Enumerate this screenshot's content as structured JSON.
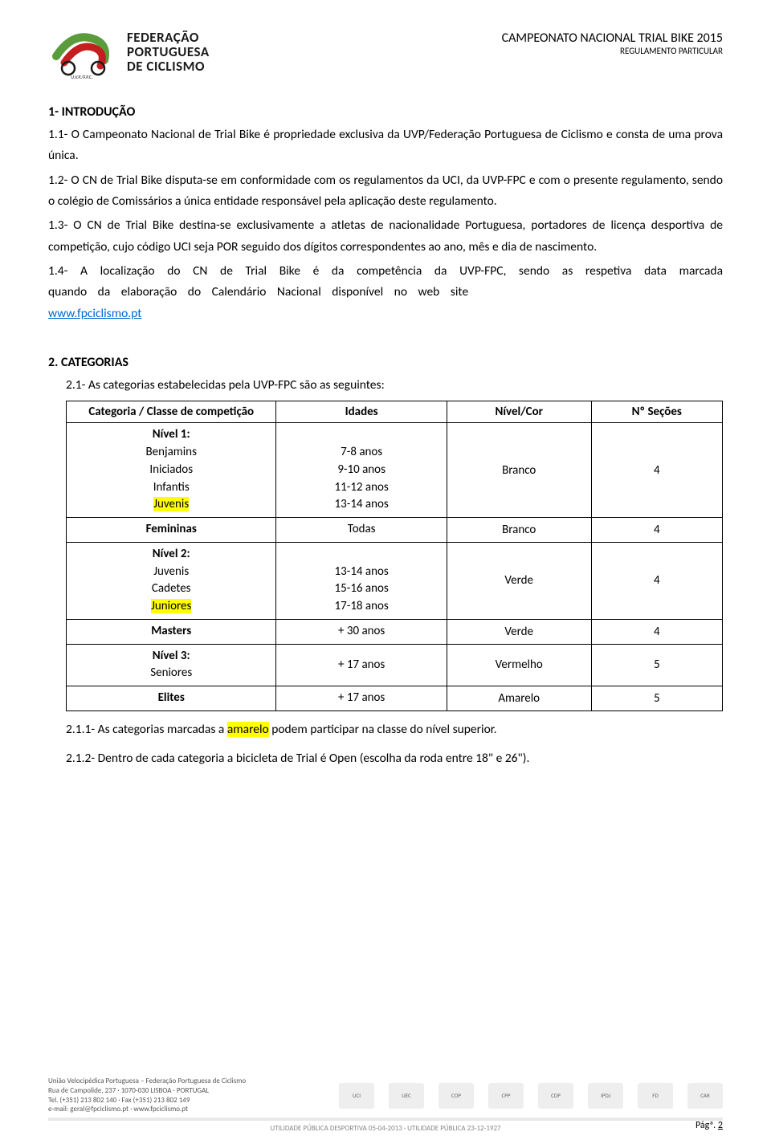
{
  "header": {
    "org_line1": "FEDERAÇÃO",
    "org_line2": "PORTUGUESA",
    "org_line3": "DE CICLISMO",
    "logo_sub": "U.V.P./F.P.C.",
    "title": "CAMPEONATO NACIONAL TRIAL BIKE 2015",
    "subtitle": "REGULAMENTO PARTICULAR",
    "logo_colors": {
      "green": "#5a9b3c",
      "red": "#c41e1e",
      "dark": "#1a1a1a"
    }
  },
  "section1": {
    "title": "1- INTRODUÇÃO",
    "p1": "1.1- O Campeonato Nacional de Trial Bike é propriedade exclusiva da UVP/Federação Portuguesa de Ciclismo e consta de uma prova única.",
    "p2": "1.2- O CN de Trial Bike disputa-se em conformidade com os regulamentos da UCI, da UVP-FPC e com o presente regulamento, sendo o colégio de Comissários a única entidade responsável pela aplicação deste regulamento.",
    "p3": "1.3- O CN de Trial Bike destina-se exclusivamente a atletas de nacionalidade Portuguesa, portadores de licença desportiva de competição, cujo código UCI seja POR seguido dos dígitos correspondentes ao ano, mês e dia de nascimento.",
    "p4a": "1.4- A localização do CN de Trial Bike é da competência da UVP-FPC, sendo as respetiva data marcada quando da elaboração do Calendário Nacional disponível no web site ",
    "link": "www.fpciclismo.pt"
  },
  "section2": {
    "title": "2. CATEGORIAS",
    "intro": "2.1- As categorias estabelecidas pela UVP-FPC são as seguintes:",
    "table": {
      "headers": [
        "Categoria / Classe de competição",
        "Idades",
        "Nível/Cor",
        "Nº Seções"
      ],
      "rows": [
        {
          "cat_lines": [
            "Nível 1:",
            "Benjamins",
            "Iniciados",
            "Infantis",
            "Juvenis"
          ],
          "cat_bold": [
            true,
            false,
            false,
            false,
            false
          ],
          "cat_hl": [
            false,
            false,
            false,
            false,
            true
          ],
          "idade_lines": [
            "",
            "7-8 anos",
            "9-10 anos",
            "11-12 anos",
            "13-14 anos"
          ],
          "nivel": "Branco",
          "secoes": "4"
        },
        {
          "cat_lines": [
            "Femininas"
          ],
          "cat_bold": [
            true
          ],
          "cat_hl": [
            false
          ],
          "idade_lines": [
            "Todas"
          ],
          "nivel": "Branco",
          "secoes": "4"
        },
        {
          "cat_lines": [
            "Nível 2:",
            "Juvenis",
            "Cadetes",
            "Juniores"
          ],
          "cat_bold": [
            true,
            false,
            false,
            false
          ],
          "cat_hl": [
            false,
            false,
            false,
            true
          ],
          "idade_lines": [
            "",
            "13-14 anos",
            "15-16 anos",
            "17-18 anos"
          ],
          "nivel": "Verde",
          "secoes": "4"
        },
        {
          "cat_lines": [
            "Masters"
          ],
          "cat_bold": [
            true
          ],
          "cat_hl": [
            false
          ],
          "idade_lines": [
            "+ 30 anos"
          ],
          "nivel": "Verde",
          "secoes": "4"
        },
        {
          "cat_lines": [
            "Nível 3:",
            "Seniores"
          ],
          "cat_bold": [
            true,
            false
          ],
          "cat_hl": [
            false,
            false
          ],
          "idade_lines": [
            "+ 17 anos"
          ],
          "nivel": "Vermelho",
          "secoes": "5"
        },
        {
          "cat_lines": [
            "Elites"
          ],
          "cat_bold": [
            true
          ],
          "cat_hl": [
            false
          ],
          "idade_lines": [
            "+ 17 anos"
          ],
          "nivel": "Amarelo",
          "secoes": "5"
        }
      ]
    },
    "p211_a": "2.1.1- As categorias marcadas a ",
    "p211_hl": "amarelo",
    "p211_b": " podem participar na classe do nível superior.",
    "p212": "2.1.2- Dentro de cada categoria a bicicleta de Trial é Open (escolha da roda entre 18\" e 26\")."
  },
  "footer": {
    "org": "União Velocipédica Portuguesa – Federação Portuguesa de Ciclismo",
    "addr": "Rua de Campolide, 237 · 1070-030 LISBOA · PORTUGAL",
    "tel": "Tel. (+351) 213 802 140 · Fax (+351) 213 802 149",
    "email": "e-mail: geral@fpciclismo.pt · www.fpciclismo.pt",
    "utility": "UTILIDADE PÚBLICA DESPORTIVA 05-04-2013   ·   UTILIDADE PÚBLICA 23-12-1927",
    "page_label": "Págª. ",
    "page_num": "2",
    "logos": [
      "UCI",
      "UEC",
      "COP",
      "CPP",
      "CDP",
      "IPDJ",
      "FD",
      "CAR"
    ]
  }
}
